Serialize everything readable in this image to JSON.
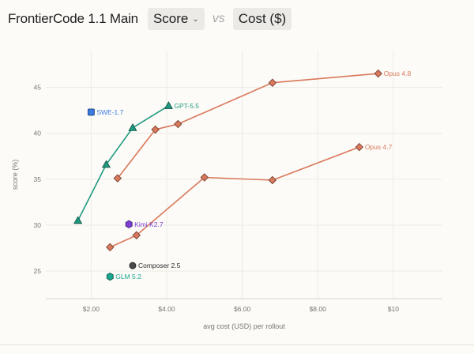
{
  "header": {
    "title": "FrontierCode 1.1 Main",
    "metric_select": "Score",
    "vs": "vs",
    "cost_toggle": "Cost ($)"
  },
  "chart_data": {
    "type": "scatter",
    "xlabel": "avg cost (USD) per rollout",
    "ylabel": "score (%)",
    "xlim": [
      0.8,
      11.3
    ],
    "ylim": [
      22,
      49
    ],
    "xticks": [
      2,
      4,
      6,
      8,
      10
    ],
    "xtick_labels": [
      "$2.00",
      "$4.00",
      "$6.00",
      "$8.00",
      "$10"
    ],
    "yticks": [
      25,
      30,
      35,
      40,
      45
    ],
    "ytick_labels": [
      "25",
      "30",
      "35",
      "40",
      "45"
    ],
    "grid": true,
    "series": [
      {
        "name": "Opus 4.8",
        "marker": "diamond",
        "color": "#d9785a",
        "line": true,
        "points": [
          [
            2.7,
            35.1
          ],
          [
            3.7,
            40.4
          ],
          [
            4.3,
            41.0
          ],
          [
            6.8,
            45.5
          ],
          [
            9.6,
            46.5
          ]
        ]
      },
      {
        "name": "Opus 4.7",
        "marker": "diamond",
        "color": "#d9785a",
        "line": true,
        "points": [
          [
            2.5,
            27.6
          ],
          [
            3.2,
            28.9
          ],
          [
            5.0,
            35.2
          ],
          [
            6.8,
            34.9
          ],
          [
            9.1,
            38.5
          ]
        ]
      },
      {
        "name": "GPT-5.5",
        "marker": "triangle",
        "color": "#1f9a80",
        "line": true,
        "points": [
          [
            1.65,
            30.5
          ],
          [
            2.4,
            36.6
          ],
          [
            3.1,
            40.6
          ],
          [
            4.05,
            43.0
          ]
        ]
      },
      {
        "name": "SWE-1.7",
        "marker": "square",
        "color": "#3a7be0",
        "line": false,
        "points": [
          [
            2.0,
            42.3
          ]
        ]
      },
      {
        "name": "Kimi K2.7",
        "marker": "hexagon",
        "color": "#7b3fd6",
        "line": false,
        "points": [
          [
            3.0,
            30.1
          ]
        ]
      },
      {
        "name": "Composer 2.5",
        "marker": "circle",
        "color": "#4a4a4a",
        "line": false,
        "points": [
          [
            3.1,
            25.6
          ]
        ]
      },
      {
        "name": "GLM 5.2",
        "marker": "hexagon",
        "color": "#1aa58f",
        "line": false,
        "points": [
          [
            2.5,
            24.4
          ]
        ]
      }
    ],
    "labels": [
      {
        "series": "Opus 4.8",
        "text": "Opus 4.8",
        "color": "#d9785a"
      },
      {
        "series": "Opus 4.7",
        "text": "Opus 4.7",
        "color": "#d9785a"
      },
      {
        "series": "GPT-5.5",
        "text": "GPT-5.5",
        "color": "#1f9a80"
      },
      {
        "series": "SWE-1.7",
        "text": "SWE-1.7",
        "color": "#3a7be0"
      },
      {
        "series": "Kimi K2.7",
        "text": "Kimi K2.7",
        "color": "#7b3fd6"
      },
      {
        "series": "Composer 2.5",
        "text": "Composer 2.5",
        "color": "#2b2b2b"
      },
      {
        "series": "GLM 5.2",
        "text": "GLM 5.2",
        "color": "#1aa58f"
      }
    ]
  }
}
